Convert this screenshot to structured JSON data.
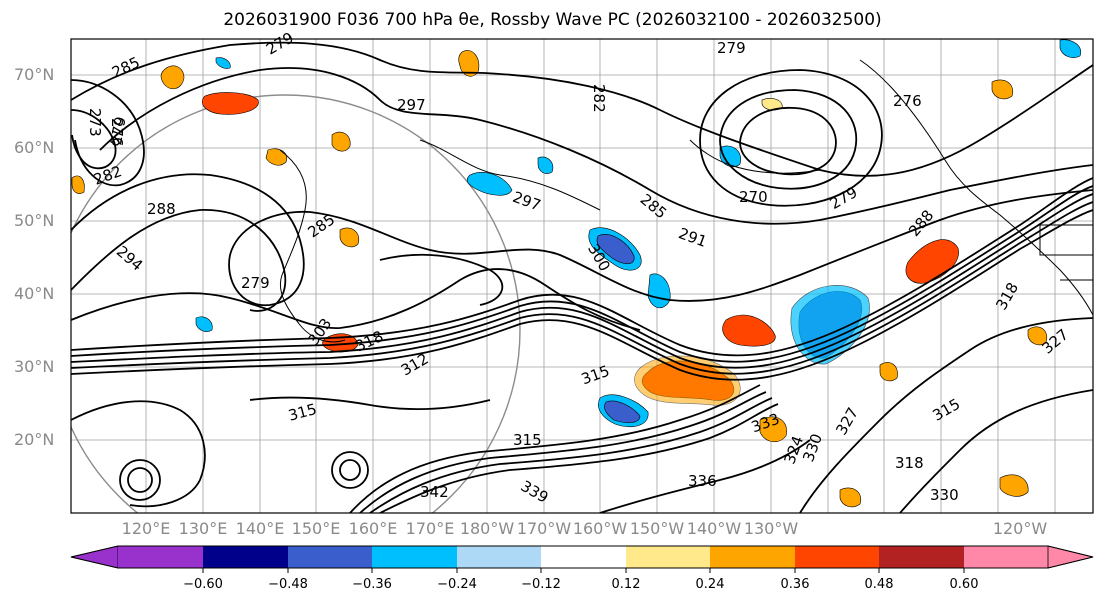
{
  "title": "2026031900 F036 700 hPa θe, Rossby Wave PC (2026032100 - 2026032500)",
  "map": {
    "lat_labels": [
      "70°N",
      "60°N",
      "50°N",
      "40°N",
      "30°N",
      "20°N"
    ],
    "lon_labels": [
      "120°E",
      "130°E",
      "140°E",
      "150°E",
      "160°E",
      "170°E",
      "180°W",
      "170°W",
      "160°W",
      "150°W",
      "140°W",
      "130°W",
      "120°W"
    ],
    "contour_labels": [
      "279",
      "276",
      "285",
      "297",
      "279",
      "282",
      "273",
      "276",
      "279",
      "270",
      "279",
      "288",
      "282",
      "297",
      "285",
      "291",
      "300",
      "288",
      "294",
      "279",
      "285",
      "303",
      "318",
      "315",
      "315",
      "315",
      "333",
      "318",
      "312",
      "327",
      "336",
      "315",
      "342",
      "339",
      "330",
      "324",
      "318",
      "330",
      "327"
    ],
    "colors": {
      "contour": "#000000",
      "grid": "#808080",
      "land": "#000000"
    }
  },
  "colorbar": {
    "ticks": [
      "−0.60",
      "−0.48",
      "−0.36",
      "−0.24",
      "−0.12",
      "0.12",
      "0.24",
      "0.36",
      "0.48",
      "0.60"
    ],
    "colors": [
      "#9932CC",
      "#00008B",
      "#3A5FCD",
      "#00BFFF",
      "#ADD8F6",
      "#FFFFFF",
      "#FFE98A",
      "#FFA500",
      "#FF4500",
      "#B22222",
      "#FF88A8"
    ],
    "extend": "both"
  }
}
